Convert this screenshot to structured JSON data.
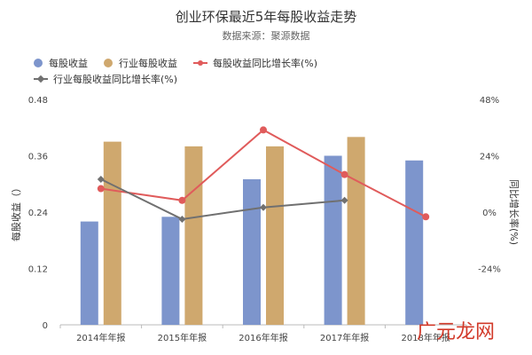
{
  "title": "创业环保最近5年每股收益走势",
  "subtitle": "数据来源：聚源数据",
  "watermark": "广元龙网",
  "colors": {
    "eps_bar": "#7d95cc",
    "industry_eps_bar": "#cfa86e",
    "eps_growth_line": "#e05b5b",
    "industry_growth_line": "#707070"
  },
  "chart_data": {
    "type": "bar",
    "title": "创业环保最近5年每股收益走势",
    "categories": [
      "2014年年报",
      "2015年年报",
      "2016年年报",
      "2017年年报",
      "2018年年报"
    ],
    "series": [
      {
        "name": "每股收益",
        "kind": "bar",
        "axis": "left",
        "values": [
          0.22,
          0.23,
          0.31,
          0.36,
          0.35
        ]
      },
      {
        "name": "行业每股收益",
        "kind": "bar",
        "axis": "left",
        "values": [
          0.39,
          0.38,
          0.38,
          0.4,
          null
        ]
      },
      {
        "name": "每股收益同比增长率(%)",
        "kind": "line",
        "marker": "circle",
        "axis": "right",
        "values": [
          10,
          5,
          35,
          16,
          -2
        ]
      },
      {
        "name": "行业每股收益同比增长率(%)",
        "kind": "line",
        "marker": "diamond",
        "axis": "right",
        "values": [
          14,
          -3,
          2,
          5,
          null
        ]
      }
    ],
    "ylabel": "每股收益（）",
    "y2label": "同比增长率(%)",
    "ylim": [
      0,
      0.48
    ],
    "y2lim": [
      -48,
      48
    ],
    "y_ticks": [
      "0",
      "0.12",
      "0.24",
      "0.36",
      "0.48"
    ],
    "y2_ticks": [
      "-24%",
      "0%",
      "24%",
      "48%"
    ],
    "grid": false,
    "legend_placement": "top-left"
  }
}
